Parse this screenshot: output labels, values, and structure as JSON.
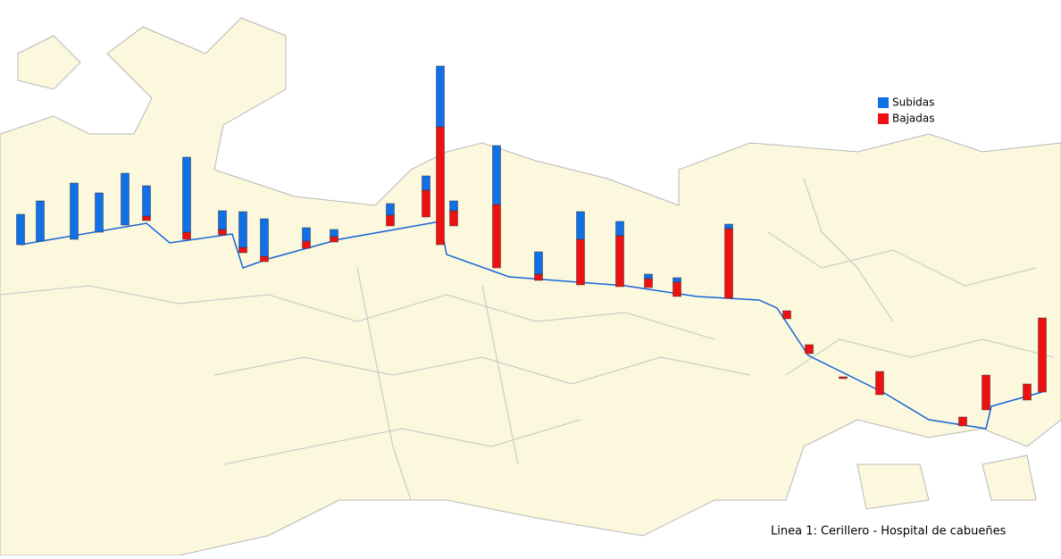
{
  "chart_data": {
    "type": "bar",
    "stacked": true,
    "caption": "Linea 1: Cerillero - Hospital de cabueñes",
    "series": [
      {
        "name": "Subidas",
        "color": "#1170e8",
        "values": [
          34,
          45,
          63,
          44,
          58,
          34,
          84,
          21,
          40,
          42,
          15,
          8,
          13,
          16,
          68,
          11,
          66,
          25,
          31,
          16,
          5,
          5,
          5,
          0,
          0,
          0,
          0,
          0,
          0,
          0,
          0
        ]
      },
      {
        "name": "Bajadas",
        "color": "#ee1111",
        "values": [
          0,
          0,
          0,
          0,
          0,
          5,
          8,
          6,
          6,
          6,
          8,
          6,
          12,
          30,
          132,
          17,
          71,
          7,
          51,
          57,
          10,
          16,
          78,
          9,
          10,
          2,
          26,
          10,
          39,
          18,
          83
        ]
      }
    ]
  }
}
